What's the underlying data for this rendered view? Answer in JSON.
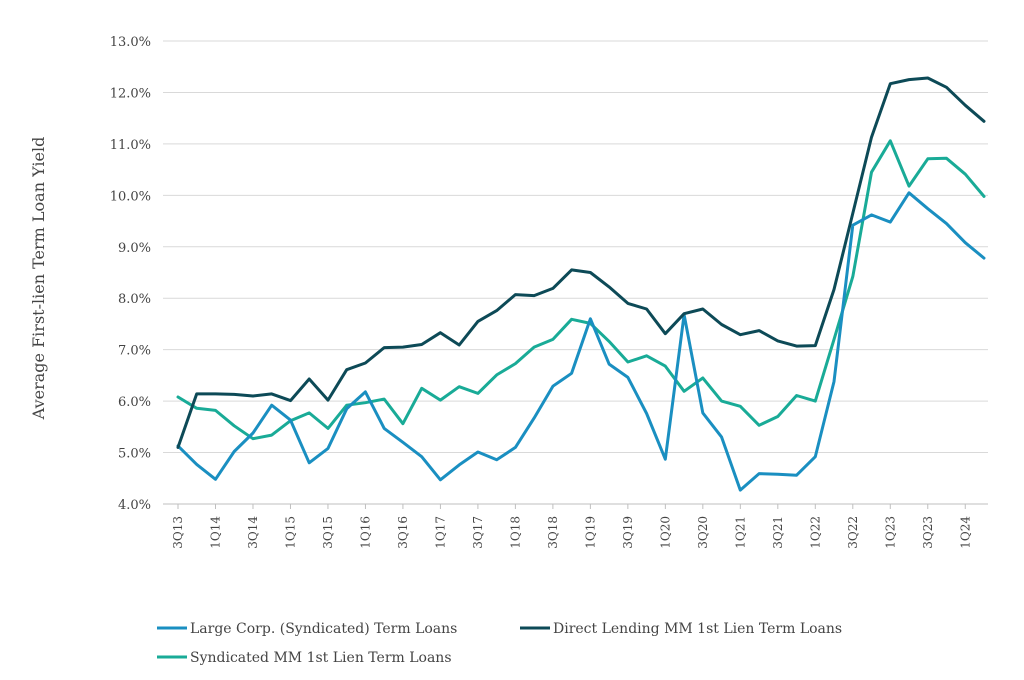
{
  "chart_data": {
    "type": "line",
    "ylabel": "Average First-lien Term Loan Yield",
    "xlabel": "",
    "ylim": [
      4.0,
      13.0
    ],
    "y_ticks": [
      4.0,
      5.0,
      6.0,
      7.0,
      8.0,
      9.0,
      10.0,
      11.0,
      12.0,
      13.0
    ],
    "y_tick_labels": [
      "4.0%",
      "5.0%",
      "6.0%",
      "7.0%",
      "8.0%",
      "9.0%",
      "10.0%",
      "11.0%",
      "12.0%",
      "13.0%"
    ],
    "x_tick_labels": [
      "3Q13",
      "1Q14",
      "3Q14",
      "1Q15",
      "3Q15",
      "1Q16",
      "3Q16",
      "1Q17",
      "3Q17",
      "1Q18",
      "3Q18",
      "1Q19",
      "3Q19",
      "1Q20",
      "3Q20",
      "1Q21",
      "3Q21",
      "1Q22",
      "3Q22",
      "1Q23",
      "3Q23",
      "1Q24"
    ],
    "x": [
      "3Q13",
      "4Q13",
      "1Q14",
      "2Q14",
      "3Q14",
      "4Q14",
      "1Q15",
      "2Q15",
      "3Q15",
      "4Q15",
      "1Q16",
      "2Q16",
      "3Q16",
      "4Q16",
      "1Q17",
      "2Q17",
      "3Q17",
      "4Q17",
      "1Q18",
      "2Q18",
      "3Q18",
      "4Q18",
      "1Q19",
      "2Q19",
      "3Q19",
      "4Q19",
      "1Q20",
      "2Q20",
      "3Q20",
      "4Q20",
      "1Q21",
      "2Q21",
      "3Q21",
      "4Q21",
      "1Q22",
      "2Q22",
      "3Q22",
      "4Q22",
      "1Q23",
      "2Q23",
      "3Q23",
      "4Q23",
      "1Q24",
      "2Q24"
    ],
    "grid": "horizontal",
    "legend_position": "bottom",
    "series": [
      {
        "name": "Large Corp. (Syndicated) Term Loans",
        "color": "#1a8fc1",
        "values": [
          5.13,
          4.77,
          4.48,
          5.02,
          5.38,
          5.92,
          5.63,
          4.8,
          5.08,
          5.85,
          6.18,
          5.47,
          5.2,
          4.92,
          4.47,
          4.76,
          5.01,
          4.86,
          5.1,
          5.67,
          6.29,
          6.54,
          7.6,
          6.72,
          6.46,
          5.76,
          4.87,
          7.68,
          5.77,
          5.3,
          4.27,
          4.59,
          4.58,
          4.56,
          4.92,
          6.38,
          9.42,
          9.62,
          9.48,
          10.05,
          9.74,
          9.45,
          9.08,
          8.78
        ]
      },
      {
        "name": "Direct Lending MM 1st Lien Term Loans",
        "color": "#0d4a57",
        "values": [
          5.1,
          6.14,
          6.14,
          6.13,
          6.1,
          6.14,
          6.01,
          6.43,
          6.02,
          6.61,
          6.74,
          7.04,
          7.05,
          7.1,
          7.33,
          7.09,
          7.55,
          7.76,
          8.07,
          8.05,
          8.19,
          8.55,
          8.5,
          8.22,
          7.9,
          7.79,
          7.31,
          7.7,
          7.79,
          7.49,
          7.29,
          7.37,
          7.17,
          7.07,
          7.08,
          8.17,
          9.65,
          11.13,
          12.17,
          12.25,
          12.28,
          12.1,
          11.75,
          11.44
        ]
      },
      {
        "name": "Syndicated MM 1st Lien Term Loans",
        "color": "#19ab97",
        "values": [
          6.08,
          5.86,
          5.82,
          5.52,
          5.27,
          5.34,
          5.62,
          5.77,
          5.47,
          5.92,
          5.97,
          6.04,
          5.56,
          6.25,
          6.02,
          6.28,
          6.15,
          6.51,
          6.73,
          7.05,
          7.2,
          7.59,
          7.51,
          7.16,
          6.76,
          6.88,
          6.68,
          6.19,
          6.45,
          6.0,
          5.9,
          5.53,
          5.7,
          6.11,
          6.0,
          7.2,
          8.42,
          10.45,
          11.06,
          10.18,
          10.71,
          10.72,
          10.41,
          9.98
        ]
      }
    ]
  }
}
